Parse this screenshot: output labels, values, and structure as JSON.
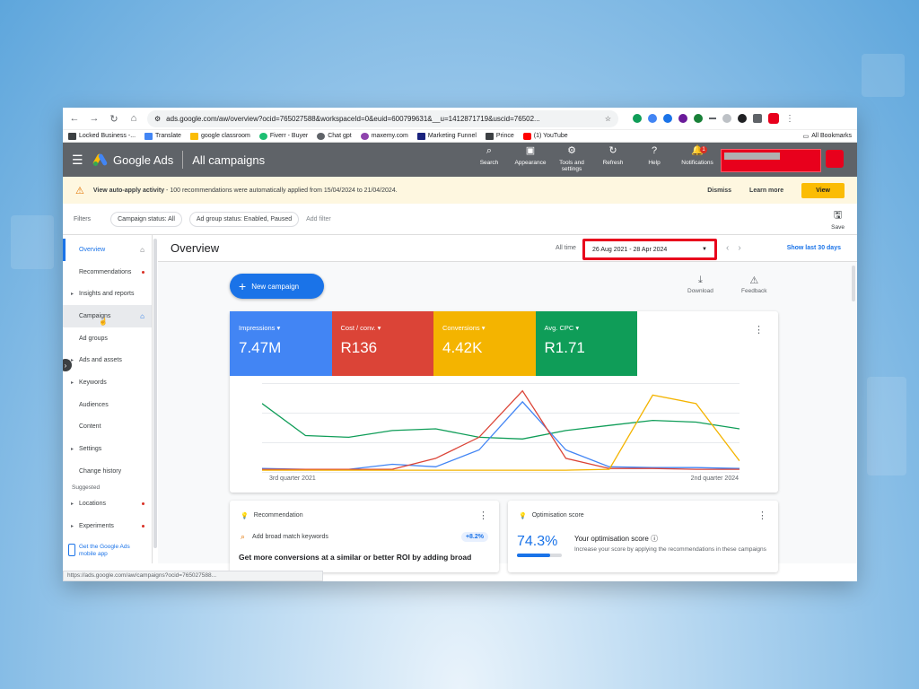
{
  "browser": {
    "url": "ads.google.com/aw/overview?ocid=765027588&workspaceId=0&euid=600799631&__u=1412871719&uscid=76502...",
    "bookmarks": [
      {
        "label": "Locked Business -...",
        "icon_color": "#3c4043"
      },
      {
        "label": "Translate",
        "icon_color": "#4285f4"
      },
      {
        "label": "google classroom",
        "icon_color": "#fbbc04"
      },
      {
        "label": "Fiverr - Buyer",
        "icon_color": "#1dbf73"
      },
      {
        "label": "Chat gpt",
        "icon_color": "#5f6368"
      },
      {
        "label": "maxemy.com",
        "icon_color": "#8e44ad"
      },
      {
        "label": "Marketing Funnel",
        "icon_color": "#1a237e"
      },
      {
        "label": "Prince",
        "icon_color": "#3c4043"
      },
      {
        "label": "(1) YouTube",
        "icon_color": "#ff0000"
      }
    ],
    "all_bookmarks": "All Bookmarks",
    "status_url": "https://ads.google.com/aw/campaigns?ocid=765027588..."
  },
  "ads_header": {
    "brand": "Google Ads",
    "section": "All campaigns",
    "tools": [
      {
        "label": "Search",
        "icon": "⌕"
      },
      {
        "label": "Appearance",
        "icon": "▣"
      },
      {
        "label": "Tools and settings",
        "icon": "⚙"
      },
      {
        "label": "Refresh",
        "icon": "↻"
      },
      {
        "label": "Help",
        "icon": "?"
      },
      {
        "label": "Notifications",
        "icon": "🔔"
      }
    ],
    "notification_count": "1"
  },
  "notice": {
    "bold": "View auto-apply activity",
    "text": " - 100 recommendations were automatically applied from 15/04/2024 to 21/04/2024.",
    "dismiss": "Dismiss",
    "learn_more": "Learn more",
    "view": "View"
  },
  "filters": {
    "label": "Filters",
    "chips": [
      "Campaign status: All",
      "Ad group status: Enabled, Paused"
    ],
    "add_filter": "Add filter",
    "save": "Save"
  },
  "sidebar": {
    "items": [
      {
        "label": "Overview",
        "active": true,
        "home": true
      },
      {
        "label": "Recommendations",
        "dot": true
      },
      {
        "label": "Insights and reports",
        "caret": true
      },
      {
        "label": "Campaigns",
        "selected": true,
        "home": true
      },
      {
        "label": "Ad groups"
      },
      {
        "label": "Ads and assets",
        "caret": true
      },
      {
        "label": "Keywords",
        "caret": true
      },
      {
        "label": "Audiences"
      },
      {
        "label": "Content"
      },
      {
        "label": "Settings",
        "caret": true
      },
      {
        "label": "Change history"
      }
    ],
    "suggested_label": "Suggested",
    "suggested": [
      {
        "label": "Locations",
        "caret": true,
        "dot": true
      },
      {
        "label": "Experiments",
        "caret": true,
        "dot": true
      }
    ],
    "get_app": "Get the Google Ads mobile app"
  },
  "overview": {
    "title": "Overview",
    "all_time": "All time",
    "date_range": "26 Aug 2021 - 28 Apr 2024",
    "show_last": "Show last 30 days",
    "new_campaign": "New campaign",
    "download": "Download",
    "feedback": "Feedback"
  },
  "metrics": [
    {
      "label": "Impressions",
      "value": "7.47M",
      "color": "#4285f4"
    },
    {
      "label": "Cost / conv.",
      "value": "R136",
      "color": "#db4437"
    },
    {
      "label": "Conversions",
      "value": "4.42K",
      "color": "#f4b400"
    },
    {
      "label": "Avg. CPC",
      "value": "R1.71",
      "color": "#0f9d58"
    }
  ],
  "chart_data": {
    "type": "line",
    "x_start_label": "3rd quarter 2021",
    "x_end_label": "2nd quarter 2024",
    "grid": true,
    "series": [
      {
        "color": "#0f9d58",
        "values": [
          80,
          42,
          40,
          48,
          50,
          40,
          38,
          48,
          54,
          60,
          58,
          50
        ]
      },
      {
        "color": "#4285f4",
        "values": [
          3,
          2,
          2,
          8,
          5,
          25,
          82,
          25,
          5,
          4,
          4,
          3
        ]
      },
      {
        "color": "#db4437",
        "values": [
          2,
          2,
          2,
          2,
          15,
          40,
          95,
          15,
          3,
          3,
          2,
          2
        ]
      },
      {
        "color": "#f4b400",
        "values": [
          1,
          1,
          1,
          1,
          1,
          1,
          1,
          1,
          2,
          90,
          80,
          12
        ]
      }
    ]
  },
  "recommendation": {
    "title": "Recommendation",
    "item": "Add broad match keywords",
    "uplift": "+8.2%",
    "body": "Get more conversions at a similar or better ROI by adding broad"
  },
  "optimisation": {
    "title": "Optimisation score",
    "score": "74.3%",
    "score_fraction": 0.743,
    "heading": "Your optimisation score",
    "desc": "Increase your score by applying the recommendations in these campaigns"
  }
}
